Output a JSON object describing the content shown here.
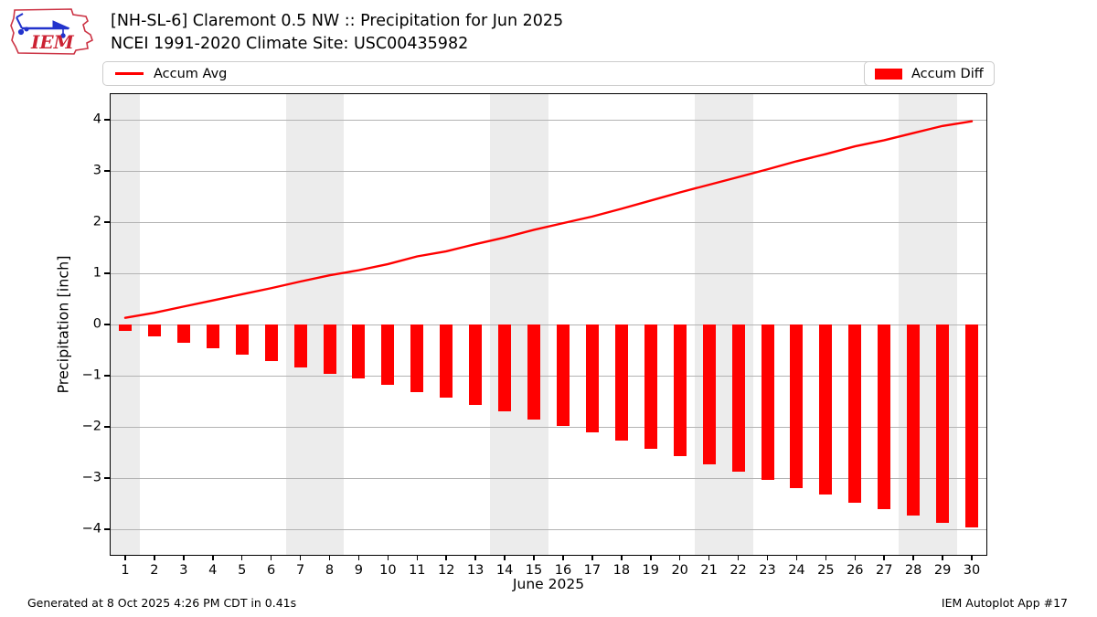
{
  "header": {
    "title": "[NH-SL-6] Claremont 0.5 NW :: Precipitation for Jun 2025",
    "subtitle": "NCEI 1991-2020 Climate Site: USC00435982",
    "logo_text": "IEM"
  },
  "legend": {
    "line_label": "Accum Avg",
    "bar_label": "Accum Diff"
  },
  "footer": {
    "left": "Generated at 8 Oct 2025 4:26 PM CDT in 0.41s",
    "right": "IEM Autoplot App #17"
  },
  "colors": {
    "series_red": "#ff0000",
    "grid": "#b3b3b3",
    "weekend_band": "#ececec",
    "legend_border": "#cccccc",
    "axis_black": "#000000",
    "logo_red": "#cc2233",
    "logo_blue": "#2233cc"
  },
  "chart_data": {
    "type": "bar",
    "title": "[NH-SL-6] Claremont 0.5 NW :: Precipitation for Jun 2025",
    "subtitle": "NCEI 1991-2020 Climate Site: USC00435982",
    "xlabel": "June 2025",
    "ylabel": "Precipitation [inch]",
    "x": [
      1,
      2,
      3,
      4,
      5,
      6,
      7,
      8,
      9,
      10,
      11,
      12,
      13,
      14,
      15,
      16,
      17,
      18,
      19,
      20,
      21,
      22,
      23,
      24,
      25,
      26,
      27,
      28,
      29,
      30
    ],
    "series": [
      {
        "name": "Accum Avg",
        "type": "line",
        "color": "#ff0000",
        "values": [
          0.13,
          0.23,
          0.35,
          0.47,
          0.59,
          0.71,
          0.84,
          0.96,
          1.06,
          1.18,
          1.33,
          1.43,
          1.57,
          1.7,
          1.85,
          1.98,
          2.11,
          2.26,
          2.42,
          2.58,
          2.73,
          2.88,
          3.03,
          3.19,
          3.33,
          3.48,
          3.6,
          3.74,
          3.88,
          3.97
        ]
      },
      {
        "name": "Accum Diff",
        "type": "bar",
        "color": "#ff0000",
        "values": [
          -0.13,
          -0.23,
          -0.35,
          -0.47,
          -0.59,
          -0.71,
          -0.84,
          -0.96,
          -1.06,
          -1.18,
          -1.33,
          -1.43,
          -1.57,
          -1.7,
          -1.85,
          -1.98,
          -2.11,
          -2.26,
          -2.42,
          -2.58,
          -2.73,
          -2.88,
          -3.03,
          -3.19,
          -3.33,
          -3.48,
          -3.6,
          -3.74,
          -3.88,
          -3.97
        ]
      }
    ],
    "ylim": [
      -4.5,
      4.5
    ],
    "xlim": [
      0.5,
      30.5
    ],
    "yticks": [
      -4,
      -3,
      -2,
      -1,
      0,
      1,
      2,
      3,
      4
    ],
    "xticks": [
      1,
      2,
      3,
      4,
      5,
      6,
      7,
      8,
      9,
      10,
      11,
      12,
      13,
      14,
      15,
      16,
      17,
      18,
      19,
      20,
      21,
      22,
      23,
      24,
      25,
      26,
      27,
      28,
      29,
      30
    ],
    "weekend_bands": [
      [
        0.5,
        1.5
      ],
      [
        6.5,
        8.5
      ],
      [
        13.5,
        15.5
      ],
      [
        20.5,
        22.5
      ],
      [
        27.5,
        29.5
      ]
    ],
    "grid": "horizontal",
    "legend_position": "top"
  }
}
